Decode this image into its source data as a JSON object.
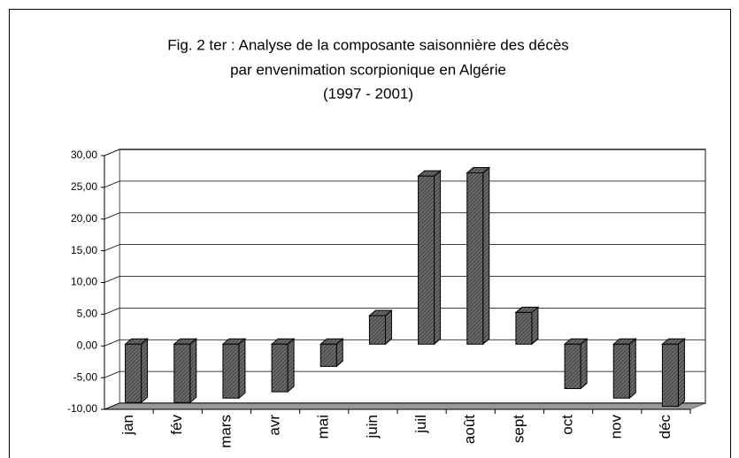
{
  "chart_data": {
    "type": "bar",
    "title": [
      "Fig. 2 ter : Analyse de la composante saisonnière des décès",
      "par envenimation scorpionique en Algérie",
      "(1997 - 2001)"
    ],
    "categories": [
      "jan",
      "fév",
      "mars",
      "avr",
      "mai",
      "juin",
      "juil",
      "août",
      "sept",
      "oct",
      "nov",
      "déc"
    ],
    "values": [
      -9.2,
      -9.2,
      -8.5,
      -7.5,
      -3.5,
      4.5,
      26.5,
      27,
      5,
      -7,
      -8.5,
      -9.8
    ],
    "color": "#5a5a5a",
    "ylim": [
      -10,
      30
    ],
    "yticks": [
      {
        "value": -10,
        "label": "-10,00"
      },
      {
        "value": -5,
        "label": "-5,00"
      },
      {
        "value": 0,
        "label": "0,00"
      },
      {
        "value": 5,
        "label": "5,00"
      },
      {
        "value": 10,
        "label": "10,00"
      },
      {
        "value": 15,
        "label": "15,00"
      },
      {
        "value": 20,
        "label": "20,00"
      },
      {
        "value": 25,
        "label": "25,00"
      },
      {
        "value": 30,
        "label": "30,00"
      }
    ],
    "grid": true
  }
}
